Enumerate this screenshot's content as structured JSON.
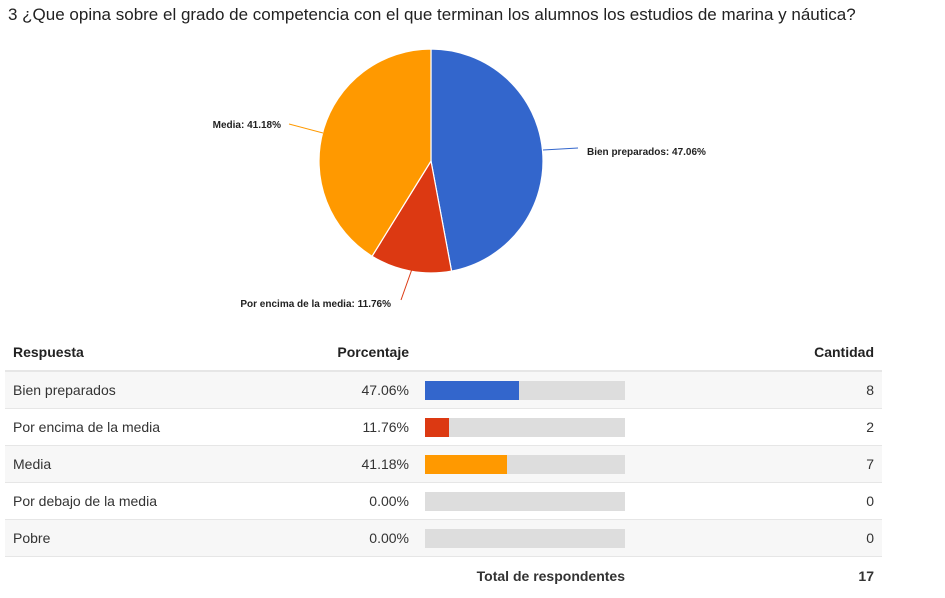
{
  "question": "3 ¿Que opina sobre el grado de competencia con el que terminan los alumnos los estudios de marina y náutica?",
  "chart_data": {
    "type": "pie",
    "slices": [
      {
        "label": "Bien preparados",
        "value": 47.06,
        "display": "Bien preparados: 47.06%",
        "color": "#3366cc"
      },
      {
        "label": "Por encima de la media",
        "value": 11.76,
        "display": "Por encima de la media: 11.76%",
        "color": "#dc3912"
      },
      {
        "label": "Media",
        "value": 41.18,
        "display": "Media: 41.18%",
        "color": "#ff9900"
      }
    ]
  },
  "table": {
    "headers": {
      "response": "Respuesta",
      "percent": "Porcentaje",
      "count": "Cantidad"
    },
    "rows": [
      {
        "label": "Bien preparados",
        "percent": "47.06%",
        "fraction": 0.4706,
        "count": "8",
        "color": "#3366cc"
      },
      {
        "label": "Por encima de la media",
        "percent": "11.76%",
        "fraction": 0.1176,
        "count": "2",
        "color": "#dc3912"
      },
      {
        "label": "Media",
        "percent": "41.18%",
        "fraction": 0.4118,
        "count": "7",
        "color": "#ff9900"
      },
      {
        "label": "Por debajo de la media",
        "percent": "0.00%",
        "fraction": 0,
        "count": "0",
        "color": "#3366cc"
      },
      {
        "label": "Pobre",
        "percent": "0.00%",
        "fraction": 0,
        "count": "0",
        "color": "#3366cc"
      }
    ],
    "total_label": "Total de respondentes",
    "total_value": "17"
  }
}
